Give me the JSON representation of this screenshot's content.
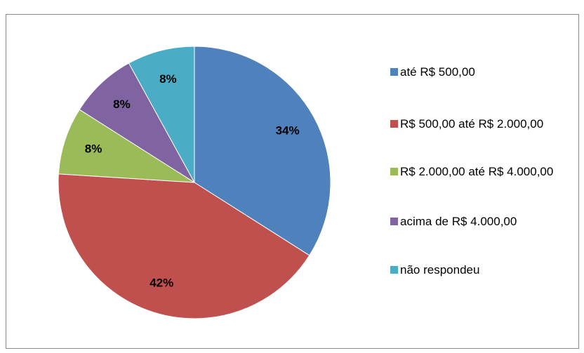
{
  "chart_data": {
    "type": "pie",
    "categories": [
      "até R$ 500,00",
      "R$ 500,00 até R$ 2.000,00",
      "R$ 2.000,00 até R$ 4.000,00",
      "acima de R$ 4.000,00",
      "não respondeu"
    ],
    "values": [
      34,
      42,
      8,
      8,
      8
    ],
    "value_labels": [
      "34%",
      "42%",
      "8%",
      "8%",
      "8%"
    ],
    "colors": [
      "#4f81bd",
      "#c0504d",
      "#9bbb59",
      "#8064a2",
      "#4bacc6"
    ],
    "legend": "right"
  }
}
